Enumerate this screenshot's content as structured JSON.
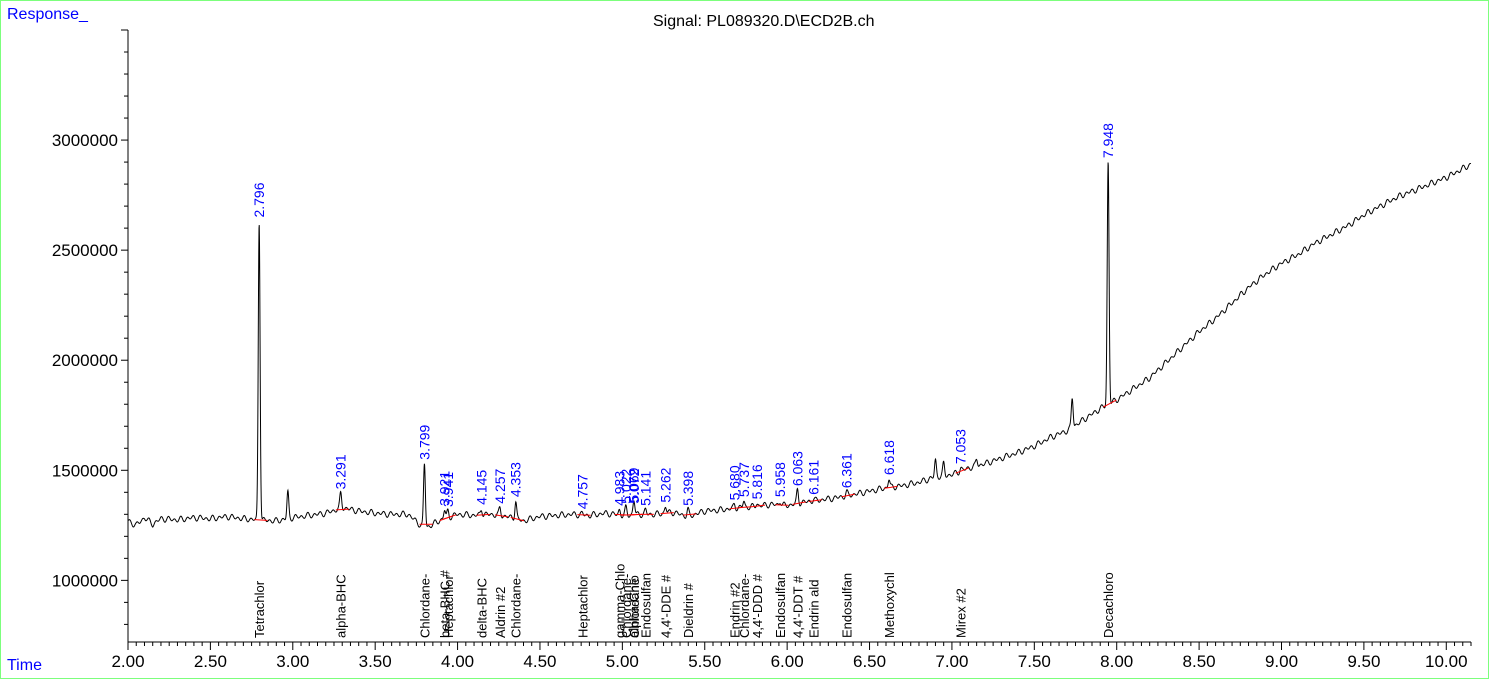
{
  "header": {
    "y_axis_label": "Response_",
    "x_axis_label": "Time",
    "title": "Signal: PL089320.D\\ECD2B.ch"
  },
  "colors": {
    "trace": "#000000",
    "peak_label": "#0000ff",
    "baseline": "#ff0000",
    "frame": "#7cff7c",
    "axis_label": "#0000ff"
  },
  "chart_data": {
    "type": "line",
    "title": "Signal: PL089320.D\\ECD2B.ch",
    "xlabel": "Time",
    "ylabel": "Response_",
    "xlim": [
      2.0,
      10.15
    ],
    "ylim": [
      720000,
      3500000
    ],
    "x_ticks": [
      "2.00",
      "2.50",
      "3.00",
      "3.50",
      "4.00",
      "4.50",
      "5.00",
      "5.50",
      "6.00",
      "6.50",
      "7.00",
      "7.50",
      "8.00",
      "8.50",
      "9.00",
      "9.50",
      "10.00"
    ],
    "y_ticks": [
      "1000000",
      "1500000",
      "2000000",
      "2500000",
      "3000000"
    ],
    "baseline_points": [
      [
        2.0,
        1270000
      ],
      [
        2.05,
        1250000
      ],
      [
        2.1,
        1285000
      ],
      [
        2.15,
        1255000
      ],
      [
        2.2,
        1280000
      ],
      [
        2.3,
        1275000
      ],
      [
        2.4,
        1285000
      ],
      [
        2.5,
        1280000
      ],
      [
        2.6,
        1290000
      ],
      [
        2.7,
        1280000
      ],
      [
        2.78,
        1275000
      ],
      [
        2.9,
        1270000
      ],
      [
        3.0,
        1285000
      ],
      [
        3.1,
        1295000
      ],
      [
        3.2,
        1305000
      ],
      [
        3.3,
        1330000
      ],
      [
        3.4,
        1315000
      ],
      [
        3.5,
        1305000
      ],
      [
        3.6,
        1300000
      ],
      [
        3.7,
        1300000
      ],
      [
        3.8,
        1235000
      ],
      [
        3.9,
        1275000
      ],
      [
        4.0,
        1300000
      ],
      [
        4.1,
        1295000
      ],
      [
        4.2,
        1300000
      ],
      [
        4.3,
        1290000
      ],
      [
        4.4,
        1270000
      ],
      [
        4.5,
        1290000
      ],
      [
        4.6,
        1295000
      ],
      [
        4.7,
        1300000
      ],
      [
        4.8,
        1295000
      ],
      [
        4.9,
        1305000
      ],
      [
        5.0,
        1295000
      ],
      [
        5.1,
        1300000
      ],
      [
        5.2,
        1300000
      ],
      [
        5.3,
        1310000
      ],
      [
        5.4,
        1290000
      ],
      [
        5.5,
        1315000
      ],
      [
        5.6,
        1320000
      ],
      [
        5.7,
        1330000
      ],
      [
        5.8,
        1335000
      ],
      [
        5.9,
        1345000
      ],
      [
        6.0,
        1340000
      ],
      [
        6.1,
        1355000
      ],
      [
        6.2,
        1365000
      ],
      [
        6.3,
        1375000
      ],
      [
        6.4,
        1390000
      ],
      [
        6.5,
        1405000
      ],
      [
        6.6,
        1420000
      ],
      [
        6.7,
        1430000
      ],
      [
        6.8,
        1445000
      ],
      [
        6.9,
        1470000
      ],
      [
        7.0,
        1480000
      ],
      [
        7.1,
        1510000
      ],
      [
        7.2,
        1530000
      ],
      [
        7.3,
        1555000
      ],
      [
        7.4,
        1580000
      ],
      [
        7.5,
        1610000
      ],
      [
        7.6,
        1650000
      ],
      [
        7.7,
        1680000
      ],
      [
        7.8,
        1730000
      ],
      [
        7.9,
        1780000
      ],
      [
        8.0,
        1820000
      ],
      [
        8.1,
        1870000
      ],
      [
        8.2,
        1920000
      ],
      [
        8.3,
        1990000
      ],
      [
        8.4,
        2060000
      ],
      [
        8.5,
        2130000
      ],
      [
        8.6,
        2190000
      ],
      [
        8.7,
        2260000
      ],
      [
        8.8,
        2330000
      ],
      [
        8.9,
        2390000
      ],
      [
        9.0,
        2440000
      ],
      [
        9.1,
        2480000
      ],
      [
        9.2,
        2530000
      ],
      [
        9.3,
        2570000
      ],
      [
        9.4,
        2610000
      ],
      [
        9.5,
        2660000
      ],
      [
        9.6,
        2700000
      ],
      [
        9.7,
        2740000
      ],
      [
        9.8,
        2770000
      ],
      [
        9.9,
        2800000
      ],
      [
        10.0,
        2830000
      ],
      [
        10.1,
        2870000
      ],
      [
        10.15,
        2890000
      ]
    ],
    "peaks": [
      {
        "rt": 2.796,
        "height": 2630000,
        "label": "2.796"
      },
      {
        "rt": 3.291,
        "height": 1395000,
        "label": "3.291"
      },
      {
        "rt": 3.799,
        "height": 1530000,
        "label": "3.799"
      },
      {
        "rt": 3.921,
        "height": 1320000,
        "label": "3.921"
      },
      {
        "rt": 3.941,
        "height": 1315000,
        "label": "3.941"
      },
      {
        "rt": 4.145,
        "height": 1325000,
        "label": "4.145"
      },
      {
        "rt": 4.257,
        "height": 1330000,
        "label": "4.257"
      },
      {
        "rt": 4.353,
        "height": 1360000,
        "label": "4.353"
      },
      {
        "rt": 4.757,
        "height": 1305000,
        "label": "4.757"
      },
      {
        "rt": 4.983,
        "height": 1320000,
        "label": "4.983"
      },
      {
        "rt": 5.022,
        "height": 1330000,
        "label": "5.022"
      },
      {
        "rt": 5.069,
        "height": 1335000,
        "label": "5.069"
      },
      {
        "rt": 5.072,
        "height": 1330000,
        "label": "5.072"
      },
      {
        "rt": 5.141,
        "height": 1320000,
        "label": "5.141"
      },
      {
        "rt": 5.262,
        "height": 1335000,
        "label": "5.262"
      },
      {
        "rt": 5.398,
        "height": 1320000,
        "label": "5.398"
      },
      {
        "rt": 5.68,
        "height": 1345000,
        "label": "5.680"
      },
      {
        "rt": 5.737,
        "height": 1360000,
        "label": "5.737"
      },
      {
        "rt": 5.816,
        "height": 1350000,
        "label": "5.816"
      },
      {
        "rt": 5.958,
        "height": 1360000,
        "label": "5.958"
      },
      {
        "rt": 6.063,
        "height": 1410000,
        "label": "6.063"
      },
      {
        "rt": 6.161,
        "height": 1370000,
        "label": "6.161"
      },
      {
        "rt": 6.361,
        "height": 1400000,
        "label": "6.361"
      },
      {
        "rt": 6.618,
        "height": 1460000,
        "label": "6.618"
      },
      {
        "rt": 7.053,
        "height": 1510000,
        "label": "7.053"
      },
      {
        "rt": 7.948,
        "height": 2900000,
        "label": "7.948"
      }
    ],
    "unlabeled_peaks": [
      {
        "rt": 2.97,
        "height": 1400000
      },
      {
        "rt": 6.9,
        "height": 1545000
      },
      {
        "rt": 6.95,
        "height": 1530000
      },
      {
        "rt": 7.15,
        "height": 1550000
      },
      {
        "rt": 7.73,
        "height": 1830000
      }
    ],
    "compounds": [
      {
        "rt": 2.796,
        "name": "Tetrachlor"
      },
      {
        "rt": 3.291,
        "name": "alpha-BHC"
      },
      {
        "rt": 3.799,
        "name": "Chlordane-"
      },
      {
        "rt": 3.921,
        "name": "beta-BHC #"
      },
      {
        "rt": 3.941,
        "name": "Heptachlor"
      },
      {
        "rt": 4.145,
        "name": "delta-BHC"
      },
      {
        "rt": 4.257,
        "name": "Aldrin #2"
      },
      {
        "rt": 4.353,
        "name": "Chlordane-"
      },
      {
        "rt": 4.757,
        "name": "Heptachlor"
      },
      {
        "rt": 4.983,
        "name": "gamma-Chlo"
      },
      {
        "rt": 5.022,
        "name": "Chlordane-"
      },
      {
        "rt": 5.069,
        "name": "alpha-Chlo"
      },
      {
        "rt": 5.072,
        "name": "Chlordane"
      },
      {
        "rt": 5.141,
        "name": "Endosulfan"
      },
      {
        "rt": 5.262,
        "name": "4,4'-DDE #"
      },
      {
        "rt": 5.398,
        "name": "Dieldrin #"
      },
      {
        "rt": 5.68,
        "name": "Endrin #2"
      },
      {
        "rt": 5.737,
        "name": "Chlordane-"
      },
      {
        "rt": 5.816,
        "name": "4,4'-DDD #"
      },
      {
        "rt": 5.958,
        "name": "Endosulfan"
      },
      {
        "rt": 6.063,
        "name": "4,4'-DDT #"
      },
      {
        "rt": 6.161,
        "name": "Endrin ald"
      },
      {
        "rt": 6.361,
        "name": "Endosulfan"
      },
      {
        "rt": 6.618,
        "name": "Methoxychl"
      },
      {
        "rt": 7.053,
        "name": "Mirex #2"
      },
      {
        "rt": 7.948,
        "name": "Decachloro"
      }
    ]
  }
}
